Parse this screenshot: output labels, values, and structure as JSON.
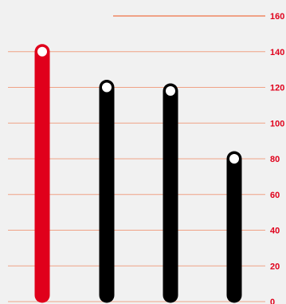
{
  "colors": {
    "background": "#f1f1f1",
    "gridline": "#f0a286",
    "axis_label": "#e0001b",
    "highlight_bar": "#e0001b",
    "bar": "#000000",
    "marker_fill": "#ffffff"
  },
  "chart_data": {
    "type": "bar",
    "title": "",
    "xlabel": "",
    "ylabel": "",
    "categories": [
      "",
      "",
      "",
      ""
    ],
    "values": [
      140,
      120,
      118,
      80
    ],
    "highlight_index": 0,
    "ylim": [
      0,
      160
    ],
    "yticks": [
      "0",
      "20",
      "40",
      "60",
      "80",
      "100",
      "120",
      "140",
      "160"
    ],
    "y_axis_side": "right",
    "grid": true
  }
}
